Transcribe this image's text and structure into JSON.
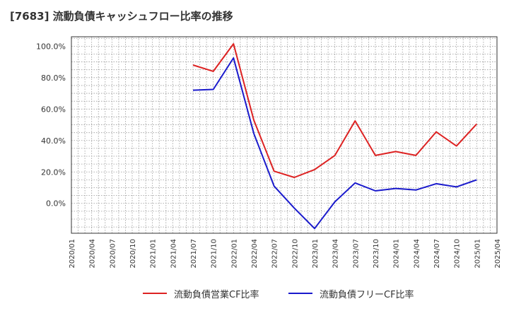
{
  "chart_data": {
    "type": "line",
    "title": "[7683]  流動負債キャッシュフロー比率の推移",
    "xlabel": "",
    "ylabel": "",
    "x": [
      "2021/07",
      "2021/10",
      "2022/01",
      "2022/04",
      "2022/07",
      "2022/10",
      "2023/01",
      "2023/04",
      "2023/07",
      "2023/10",
      "2024/01",
      "2024/04",
      "2024/07",
      "2024/10",
      "2025/01"
    ],
    "x_ticks": [
      "2020/01",
      "2020/04",
      "2020/07",
      "2020/10",
      "2021/01",
      "2021/04",
      "2021/07",
      "2021/10",
      "2022/01",
      "2022/04",
      "2022/07",
      "2022/10",
      "2023/01",
      "2023/04",
      "2023/07",
      "2023/10",
      "2024/01",
      "2024/04",
      "2024/07",
      "2024/10",
      "2025/01",
      "2025/04"
    ],
    "y_ticks": [
      "100.0%",
      "80.0%",
      "60.0%",
      "40.0%",
      "20.0%",
      "0.0%"
    ],
    "y_tick_values": [
      100,
      80,
      60,
      40,
      20,
      0
    ],
    "ylim": [
      -19,
      106
    ],
    "grid": true,
    "legend_position": "bottom",
    "series": [
      {
        "name": "流動負債営業CF比率",
        "color": "#dd2222",
        "values": [
          88,
          84,
          101.5,
          53,
          20.5,
          16.5,
          21.5,
          30.5,
          52.5,
          30.5,
          33,
          30.5,
          45.5,
          36.5,
          50.5
        ]
      },
      {
        "name": "流動負債フリーCF比率",
        "color": "#1a1acc",
        "values": [
          72,
          72.5,
          92.5,
          44.5,
          11,
          -3,
          -16,
          1,
          13,
          8,
          9.5,
          8.5,
          12.5,
          10.5,
          15
        ]
      }
    ]
  },
  "colors": {
    "grid": "#999999",
    "axis": "#333333",
    "text": "#333333"
  }
}
